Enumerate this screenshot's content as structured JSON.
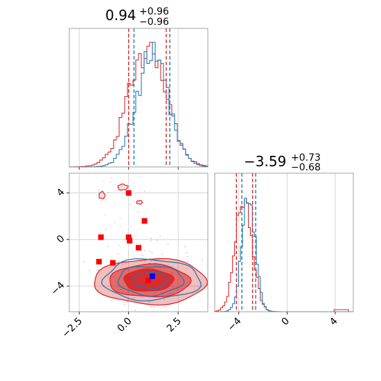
{
  "colors": {
    "red": "#d62728",
    "blue": "#1f77b4",
    "grid": "#cccccc",
    "frame": "#888888",
    "marker_red": "#ff0000",
    "marker_blue": "#0000ff"
  },
  "chart_data": [
    {
      "panel": "top-left",
      "type": "histogram",
      "xlim": [
        -3.0,
        4.0
      ],
      "title": {
        "median": "0.94",
        "plus": "+0.96",
        "minus": "−0.96"
      },
      "quantiles_red": [
        0.0,
        0.94,
        1.9
      ],
      "quantiles_blue": [
        0.27,
        1.2,
        2.08
      ],
      "series": [
        {
          "name": "red",
          "color": "#d62728",
          "center": 0.94,
          "sd": 0.96
        },
        {
          "name": "blue",
          "color": "#1f77b4",
          "center": 1.2,
          "sd": 0.82
        }
      ]
    },
    {
      "panel": "bottom-right",
      "type": "histogram",
      "xlim": [
        -6.0,
        5.5
      ],
      "xticks": [
        "−4",
        "0",
        "4"
      ],
      "xtick_values": [
        -4,
        0,
        4
      ],
      "title": {
        "median": "−3.59",
        "plus": "+0.73",
        "minus": "−0.68"
      },
      "quantiles_red": [
        -4.2,
        -3.59,
        -2.86
      ],
      "quantiles_blue": [
        -3.75,
        -3.2,
        -2.6
      ],
      "series": [
        {
          "name": "red",
          "color": "#d62728",
          "center": -3.59,
          "sd": 0.7
        },
        {
          "name": "blue",
          "color": "#1f77b4",
          "center": -3.2,
          "sd": 0.55
        }
      ]
    },
    {
      "panel": "bottom-left",
      "type": "scatter",
      "xlim": [
        -3.0,
        4.0
      ],
      "ylim": [
        -6.2,
        5.7
      ],
      "xticks": [
        "−2.5",
        "0.0",
        "2.5"
      ],
      "xtick_values": [
        -2.5,
        0.0,
        2.5
      ],
      "yticks": [
        "4",
        "0",
        "−4"
      ],
      "ytick_values": [
        4,
        0,
        -4
      ],
      "red_points": [
        {
          "x": 0.0,
          "y": 4.0
        },
        {
          "x": 0.8,
          "y": 1.6
        },
        {
          "x": -1.4,
          "y": 0.2
        },
        {
          "x": 0.0,
          "y": 0.2
        },
        {
          "x": 0.05,
          "y": -0.1
        },
        {
          "x": 0.5,
          "y": -0.7
        },
        {
          "x": -1.5,
          "y": -1.9
        },
        {
          "x": -0.8,
          "y": -2.0
        },
        {
          "x": 1.0,
          "y": -3.5
        }
      ],
      "blue_points": [
        {
          "x": 1.2,
          "y": -3.15
        }
      ],
      "red_contours": [
        {
          "cx": 1.0,
          "cy": -3.5,
          "rx": 1.25,
          "ry": 0.95
        },
        {
          "cx": 1.05,
          "cy": -3.55,
          "rx": 2.05,
          "ry": 1.4
        },
        {
          "cx": 1.1,
          "cy": -3.6,
          "rx": 2.85,
          "ry": 1.95
        }
      ],
      "blue_contours": [
        {
          "cx": 1.1,
          "cy": -3.5,
          "rx": 0.85,
          "ry": 0.7
        },
        {
          "cx": 1.1,
          "cy": -3.5,
          "rx": 1.65,
          "ry": 1.25
        },
        {
          "cx": 1.15,
          "cy": -3.45,
          "rx": 2.45,
          "ry": 1.75
        }
      ],
      "red_islands": [
        {
          "cx": -0.3,
          "cy": 4.5,
          "rx": 0.25,
          "ry": 0.25
        },
        {
          "cx": -1.35,
          "cy": 3.8,
          "rx": 0.15,
          "ry": 0.3
        },
        {
          "cx": 0.55,
          "cy": 3.2,
          "rx": 0.15,
          "ry": 0.15
        }
      ]
    }
  ]
}
